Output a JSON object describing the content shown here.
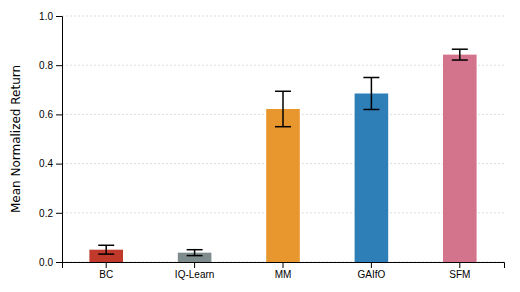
{
  "chart_data": {
    "type": "bar",
    "categories": [
      "BC",
      "IQ-Learn",
      "MM",
      "GAIfO",
      "SFM"
    ],
    "values": [
      0.05,
      0.038,
      0.622,
      0.685,
      0.843
    ],
    "errors": [
      0.018,
      0.012,
      0.072,
      0.065,
      0.022
    ],
    "colors": [
      "#c0392b",
      "#7f8c8d",
      "#e8962e",
      "#2e7fb8",
      "#d4748c"
    ],
    "ylabel": "Mean Normalized Return",
    "ylim": [
      0.0,
      1.0
    ],
    "yticks": [
      {
        "value": 0.0,
        "label": "0.0"
      },
      0.2,
      0.4,
      0.6,
      0.8,
      {
        "value": 1.0,
        "label": "1.0"
      }
    ],
    "grid": true
  }
}
